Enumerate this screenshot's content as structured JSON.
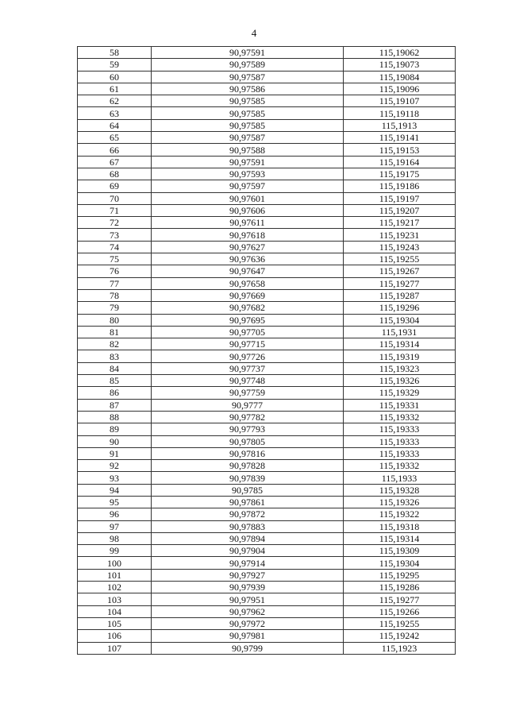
{
  "page_number": "4",
  "rows": [
    [
      "58",
      "90,97591",
      "115,19062"
    ],
    [
      "59",
      "90,97589",
      "115,19073"
    ],
    [
      "60",
      "90,97587",
      "115,19084"
    ],
    [
      "61",
      "90,97586",
      "115,19096"
    ],
    [
      "62",
      "90,97585",
      "115,19107"
    ],
    [
      "63",
      "90,97585",
      "115,19118"
    ],
    [
      "64",
      "90,97585",
      "115,1913"
    ],
    [
      "65",
      "90,97587",
      "115,19141"
    ],
    [
      "66",
      "90,97588",
      "115,19153"
    ],
    [
      "67",
      "90,97591",
      "115,19164"
    ],
    [
      "68",
      "90,97593",
      "115,19175"
    ],
    [
      "69",
      "90,97597",
      "115,19186"
    ],
    [
      "70",
      "90,97601",
      "115,19197"
    ],
    [
      "71",
      "90,97606",
      "115,19207"
    ],
    [
      "72",
      "90,97611",
      "115,19217"
    ],
    [
      "73",
      "90,97618",
      "115,19231"
    ],
    [
      "74",
      "90,97627",
      "115,19243"
    ],
    [
      "75",
      "90,97636",
      "115,19255"
    ],
    [
      "76",
      "90,97647",
      "115,19267"
    ],
    [
      "77",
      "90,97658",
      "115,19277"
    ],
    [
      "78",
      "90,97669",
      "115,19287"
    ],
    [
      "79",
      "90,97682",
      "115,19296"
    ],
    [
      "80",
      "90,97695",
      "115,19304"
    ],
    [
      "81",
      "90,97705",
      "115,1931"
    ],
    [
      "82",
      "90,97715",
      "115,19314"
    ],
    [
      "83",
      "90,97726",
      "115,19319"
    ],
    [
      "84",
      "90,97737",
      "115,19323"
    ],
    [
      "85",
      "90,97748",
      "115,19326"
    ],
    [
      "86",
      "90,97759",
      "115,19329"
    ],
    [
      "87",
      "90,9777",
      "115,19331"
    ],
    [
      "88",
      "90,97782",
      "115,19332"
    ],
    [
      "89",
      "90,97793",
      "115,19333"
    ],
    [
      "90",
      "90,97805",
      "115,19333"
    ],
    [
      "91",
      "90,97816",
      "115,19333"
    ],
    [
      "92",
      "90,97828",
      "115,19332"
    ],
    [
      "93",
      "90,97839",
      "115,1933"
    ],
    [
      "94",
      "90,9785",
      "115,19328"
    ],
    [
      "95",
      "90,97861",
      "115,19326"
    ],
    [
      "96",
      "90,97872",
      "115,19322"
    ],
    [
      "97",
      "90,97883",
      "115,19318"
    ],
    [
      "98",
      "90,97894",
      "115,19314"
    ],
    [
      "99",
      "90,97904",
      "115,19309"
    ],
    [
      "100",
      "90,97914",
      "115,19304"
    ],
    [
      "101",
      "90,97927",
      "115,19295"
    ],
    [
      "102",
      "90,97939",
      "115,19286"
    ],
    [
      "103",
      "90,97951",
      "115,19277"
    ],
    [
      "104",
      "90,97962",
      "115,19266"
    ],
    [
      "105",
      "90,97972",
      "115,19255"
    ],
    [
      "106",
      "90,97981",
      "115,19242"
    ],
    [
      "107",
      "90,9799",
      "115,1923"
    ]
  ]
}
